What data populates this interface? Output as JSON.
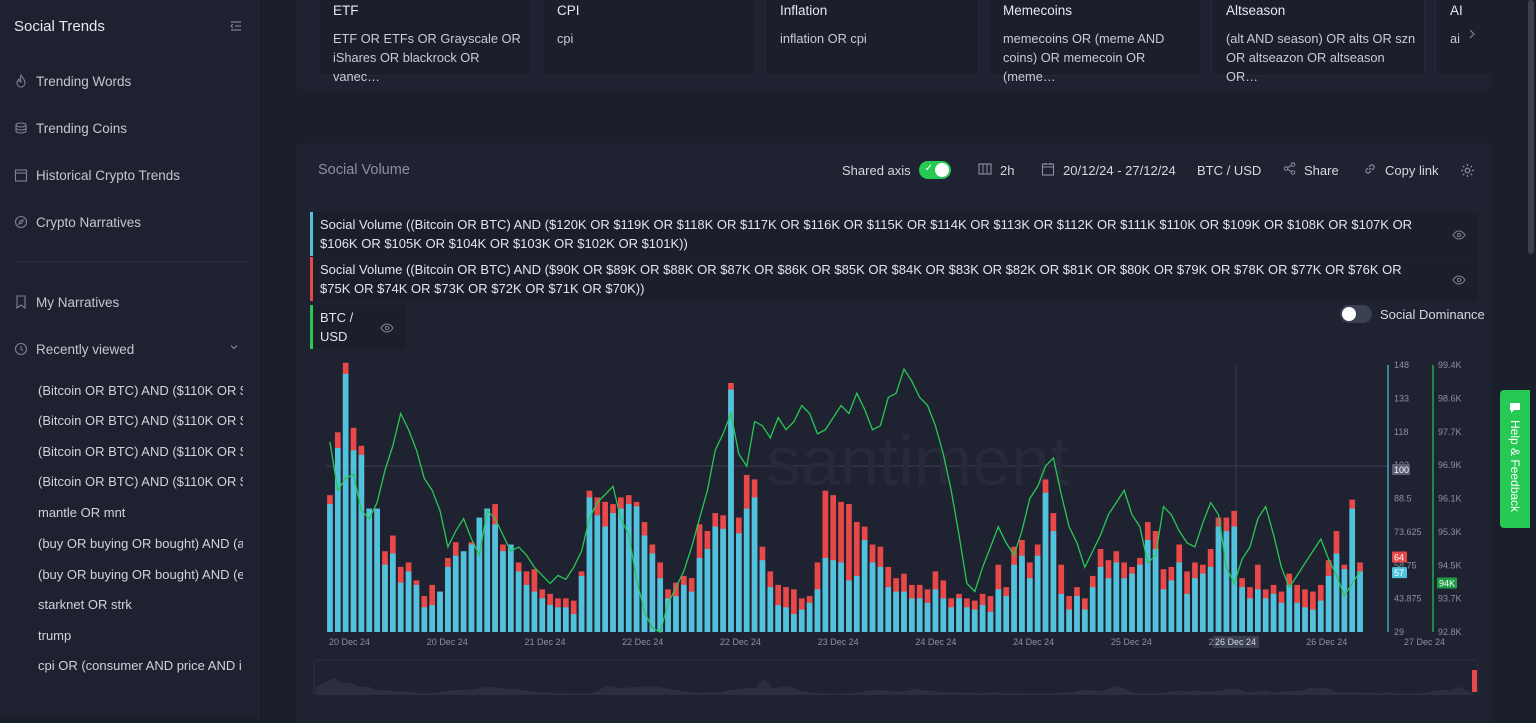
{
  "sidebar": {
    "title": "Social Trends",
    "nav": [
      {
        "label": "Trending Words",
        "icon": "flame-icon"
      },
      {
        "label": "Trending Coins",
        "icon": "coins-icon"
      },
      {
        "label": "Historical Crypto Trends",
        "icon": "calendar-icon"
      },
      {
        "label": "Crypto Narratives",
        "icon": "compass-icon"
      }
    ],
    "my_narratives": "My Narratives",
    "recently_viewed": "Recently viewed",
    "recent": [
      "(Bitcoin OR BTC) AND ($110K OR $1…",
      "(Bitcoin OR BTC) AND ($110K OR $1…",
      "(Bitcoin OR BTC) AND ($110K OR $1…",
      "(Bitcoin OR BTC) AND ($110K OR $1…",
      "mantle OR mnt",
      "(buy OR buying OR bought) AND (a…",
      "(buy OR buying OR bought) AND (e…",
      "starknet OR strk",
      "trump",
      "cpi OR (consumer AND price AND i…"
    ]
  },
  "narratives": [
    {
      "title": "ETF",
      "query": "ETF OR ETFs OR Grayscale OR iShares OR blackrock OR vanec…"
    },
    {
      "title": "CPI",
      "query": "cpi"
    },
    {
      "title": "Inflation",
      "query": "inflation OR cpi"
    },
    {
      "title": "Memecoins",
      "query": "memecoins OR (meme AND coins) OR memecoin OR (meme…"
    },
    {
      "title": "Altseason",
      "query": "(alt AND season) OR alts OR szn OR altseazon OR altseason OR…"
    },
    {
      "title": "AI",
      "query": "ai"
    }
  ],
  "panel": {
    "title": "Social Volume",
    "shared_axis": "Shared axis",
    "interval": "2h",
    "date_range": "20/12/24 - 27/12/24",
    "pair": "BTC / USD",
    "share": "Share",
    "copy_link": "Copy link",
    "social_dominance": "Social Dominance"
  },
  "metrics": [
    {
      "label": "Social Volume ((Bitcoin OR BTC) AND ($120K OR $119K OR $118K OR $117K OR $116K OR $115K OR $114K OR $113K OR $112K OR $111K $110K OR $109K OR $108K OR $107K OR $106K OR $105K OR $104K OR $103K OR $102K OR $101K))",
      "color": "#4fc3dd"
    },
    {
      "label": "Social Volume ((Bitcoin OR BTC) AND ($90K OR $89K OR $88K OR $87K OR $86K OR $85K OR $84K OR $83K OR $82K OR $81K OR $80K OR $79K OR $78K OR $77K OR $76K OR $75K OR $74K OR $73K OR $72K OR $71K OR $70K))",
      "color": "#e84848"
    },
    {
      "label": "BTC / USD",
      "color": "#26c953"
    }
  ],
  "chart_data": {
    "type": "bar",
    "watermark": "santiment",
    "x_labels": [
      "20 Dec 24",
      "20 Dec 24",
      "21 Dec 24",
      "22 Dec 24",
      "22 Dec 24",
      "23 Dec 24",
      "24 Dec 24",
      "24 Dec 24",
      "25 Dec 24",
      "26 Dec 24",
      "26 Dec 24",
      "27 Dec 24"
    ],
    "hover_x": "26 Dec 24",
    "y_left_ticks": [
      "148",
      "133",
      "118",
      "103",
      "88.5",
      "73.625",
      "58.75",
      "43.875",
      "29"
    ],
    "y_right_ticks": [
      "99.4K",
      "98.6K",
      "97.7K",
      "96.9K",
      "96.1K",
      "95.3K",
      "94.5K",
      "93.7K",
      "92.8K"
    ],
    "ylim_volume": [
      29,
      148
    ],
    "ylim_price": [
      92800,
      99400
    ],
    "hover_labels": {
      "red": "64",
      "cyan": "57",
      "crosshair": "100",
      "price": "94K"
    },
    "series": [
      {
        "name": "Social Volume ((Bitcoin OR BTC) AND ($120K … $101K))",
        "color": "#4fc3dd",
        "values": [
          86,
          111,
          144,
          110,
          108,
          84,
          84,
          59,
          64,
          51,
          56,
          50,
          40,
          41,
          47,
          58,
          63,
          65,
          68,
          80,
          84,
          77,
          65,
          68,
          56,
          50,
          47,
          44,
          41,
          40,
          40,
          37,
          54,
          89,
          81,
          76,
          82,
          84,
          86,
          85,
          72,
          64,
          53,
          44,
          45,
          50,
          47,
          62,
          66,
          76,
          75,
          137,
          73,
          84,
          89,
          61,
          49,
          41,
          40,
          37,
          39,
          42,
          48,
          62,
          61,
          60,
          52,
          54,
          70,
          60,
          58,
          49,
          47,
          47,
          44,
          44,
          42,
          48,
          44,
          40,
          44,
          40,
          39,
          41,
          38,
          48,
          45,
          59,
          63,
          53,
          63,
          91,
          74,
          46,
          39,
          45,
          39,
          49,
          58,
          53,
          60,
          53,
          55,
          59,
          70,
          66,
          48,
          52,
          60,
          46,
          53,
          55,
          58,
          76,
          74,
          76,
          49,
          44,
          48,
          44,
          46,
          42,
          50,
          42,
          40,
          39,
          43,
          54,
          64,
          57,
          84,
          56
        ]
      },
      {
        "name": "Social Volume ((Bitcoin OR BTC) AND ($90K … $70K))",
        "color": "#e84848",
        "values": [
          90,
          118,
          149,
          120,
          112,
          84,
          84,
          65,
          72,
          58,
          60,
          52,
          45,
          50,
          47,
          62,
          69,
          64,
          69,
          80,
          84,
          86,
          68,
          68,
          60,
          56,
          57,
          48,
          46,
          44,
          44,
          43,
          56,
          92,
          89,
          87,
          86,
          89,
          90,
          87,
          78,
          68,
          60,
          48,
          51,
          54,
          53,
          77,
          74,
          82,
          81,
          140,
          80,
          99,
          97,
          67,
          56,
          50,
          49,
          48,
          44,
          45,
          60,
          92,
          90,
          87,
          86,
          78,
          76,
          68,
          67,
          58,
          53,
          55,
          50,
          50,
          48,
          56,
          52,
          44,
          46,
          44,
          43,
          46,
          45,
          59,
          49,
          67,
          70,
          60,
          68,
          97,
          82,
          59,
          45,
          49,
          44,
          54,
          66,
          61,
          65,
          60,
          58,
          62,
          78,
          74,
          57,
          58,
          68,
          56,
          60,
          59,
          66,
          80,
          80,
          83,
          53,
          49,
          59,
          48,
          50,
          47,
          55,
          50,
          48,
          47,
          50,
          61,
          74,
          59,
          88,
          60
        ]
      },
      {
        "name": "BTC / USD",
        "color": "#26c953",
        "values": [
          97500,
          96300,
          96600,
          96700,
          95800,
          95600,
          96000,
          96800,
          97400,
          98200,
          97800,
          97300,
          96600,
          96300,
          95800,
          94900,
          95300,
          95600,
          95100,
          94700,
          95800,
          95600,
          95200,
          94800,
          94900,
          94700,
          94400,
          94200,
          94000,
          94200,
          94100,
          94400,
          94800,
          95600,
          96000,
          96200,
          96400,
          95600,
          95200,
          94100,
          93300,
          92900,
          92800,
          93500,
          93900,
          94300,
          94900,
          95600,
          96300,
          97300,
          97700,
          98200,
          97200,
          96900,
          98000,
          97900,
          97600,
          98100,
          97800,
          98000,
          98400,
          98200,
          97700,
          97800,
          98100,
          98400,
          98200,
          98700,
          98300,
          97800,
          97900,
          98600,
          98700,
          99300,
          99000,
          98600,
          98400,
          97900,
          97200,
          96300,
          95200,
          94000,
          93800,
          94400,
          94900,
          95400,
          95000,
          94700,
          95300,
          96100,
          96400,
          96900,
          97100,
          96200,
          95400,
          95000,
          94400,
          94800,
          95200,
          95700,
          96000,
          96300,
          95700,
          95400,
          94500,
          94700,
          95900,
          95700,
          95300,
          95000,
          94900,
          95500,
          96000,
          95700,
          94400,
          94000,
          94600,
          94900,
          95600,
          95900,
          95200,
          94400,
          93900,
          94200,
          94500,
          94800,
          95100,
          94600,
          94200,
          93700,
          94000,
          94300
        ]
      }
    ]
  }
}
